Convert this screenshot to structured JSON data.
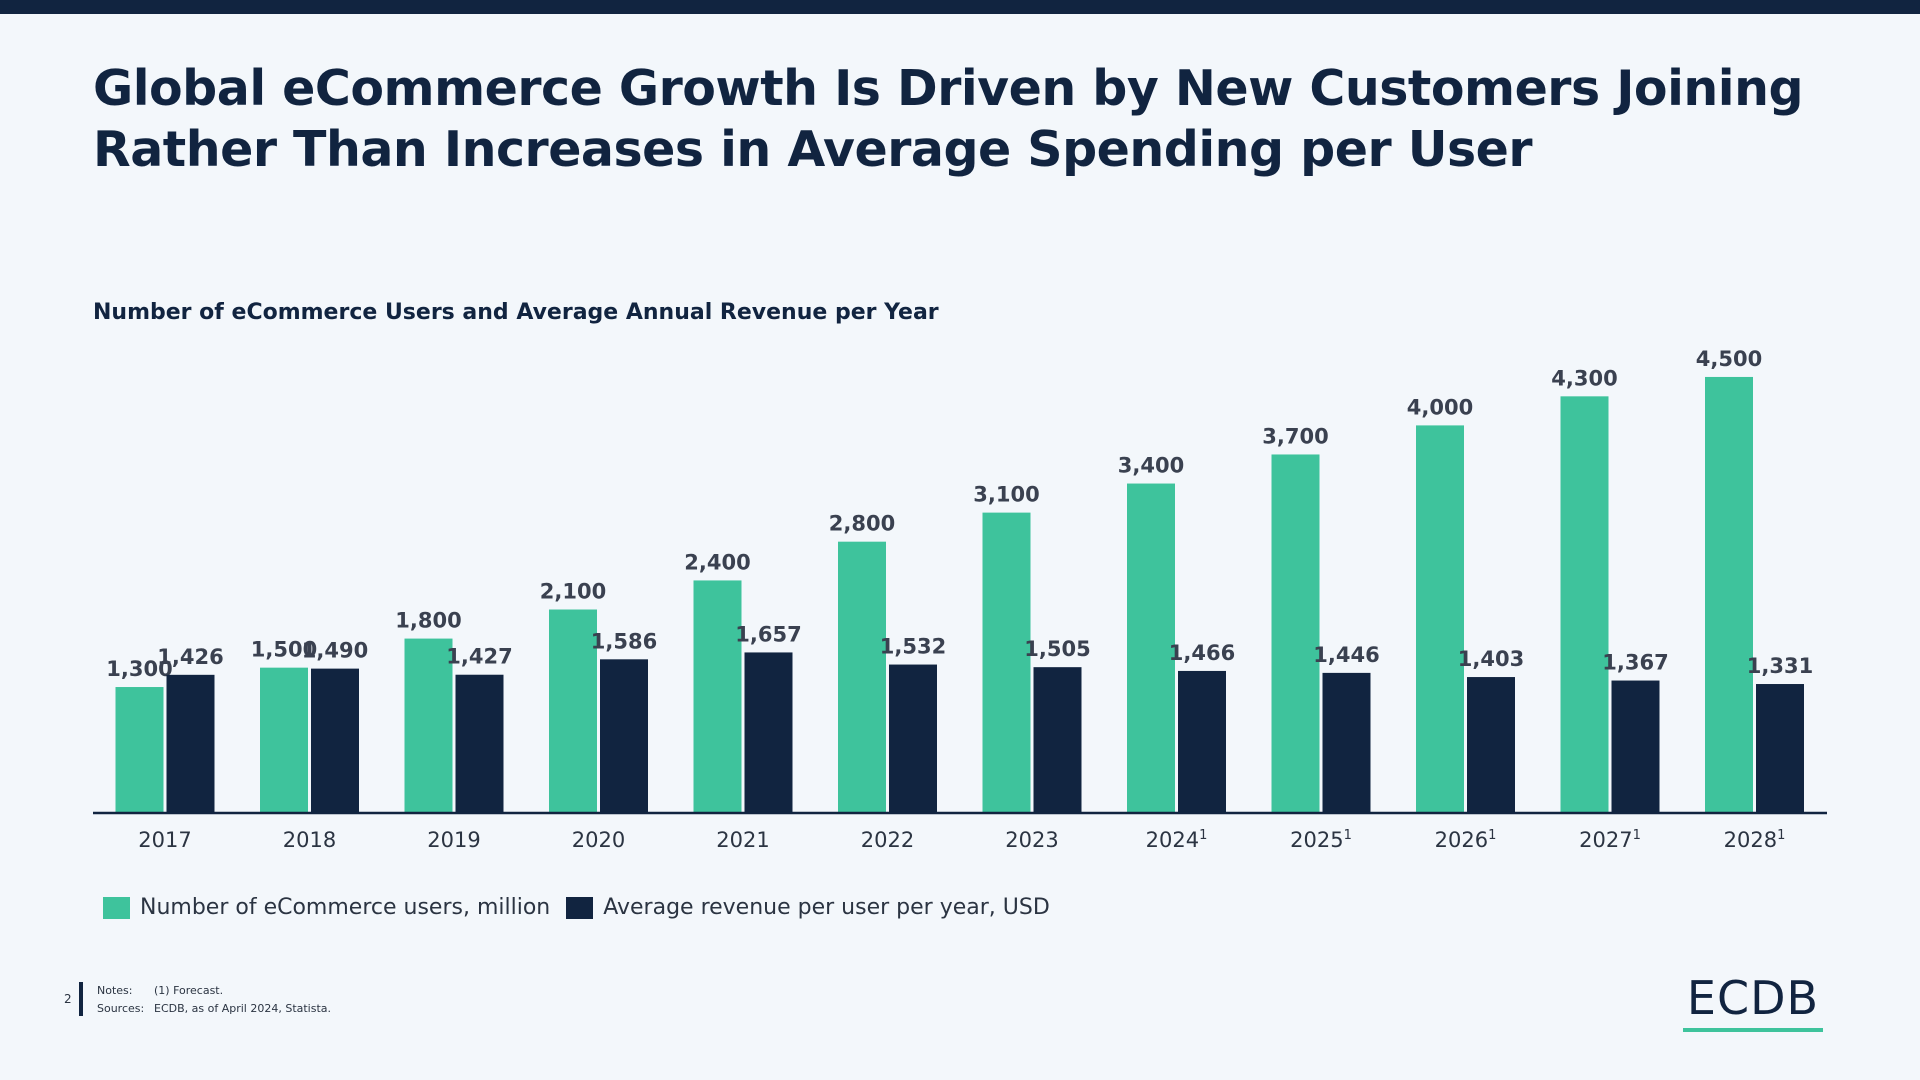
{
  "page": {
    "headline": "Global eCommerce Growth Is Driven by New Customers Joining Rather Than Increases in Average Spending per User",
    "page_number": "2",
    "notes_label": "Notes:",
    "notes_text": "(1) Forecast.",
    "sources_label": "Sources:",
    "sources_text": "ECDB, as of April 2024, Statista.",
    "logo": "ECDB"
  },
  "colors": {
    "users": "#3ec39c",
    "revenue": "#112440",
    "background": "#f3f7fb"
  },
  "chart_data": {
    "type": "bar",
    "title": "Number of eCommerce Users and Average Annual Revenue per Year",
    "xlabel": "",
    "ylabel": "",
    "categories": [
      "2017",
      "2018",
      "2019",
      "2020",
      "2021",
      "2022",
      "2023",
      "2024",
      "2025",
      "2026",
      "2027",
      "2028"
    ],
    "category_footnotes": [
      "",
      "",
      "",
      "",
      "",
      "",
      "",
      "1",
      "1",
      "1",
      "1",
      "1"
    ],
    "series": [
      {
        "name": "Number of eCommerce users, million",
        "values": [
          1300,
          1500,
          1800,
          2100,
          2400,
          2800,
          3100,
          3400,
          3700,
          4000,
          4300,
          4500
        ],
        "labels": [
          "1,300",
          "1,500",
          "1,800",
          "2,100",
          "2,400",
          "2,800",
          "3,100",
          "3,400",
          "3,700",
          "4,000",
          "4,300",
          "4,500"
        ]
      },
      {
        "name": "Average revenue per user per year, USD",
        "values": [
          1426,
          1490,
          1427,
          1586,
          1657,
          1532,
          1505,
          1466,
          1446,
          1403,
          1367,
          1331
        ],
        "labels": [
          "1,426",
          "1,490",
          "1,427",
          "1,586",
          "1,657",
          "1,532",
          "1,505",
          "1,466",
          "1,446",
          "1,403",
          "1,367",
          "1,331"
        ]
      }
    ],
    "grid": false,
    "legend_position": "bottom-left"
  }
}
